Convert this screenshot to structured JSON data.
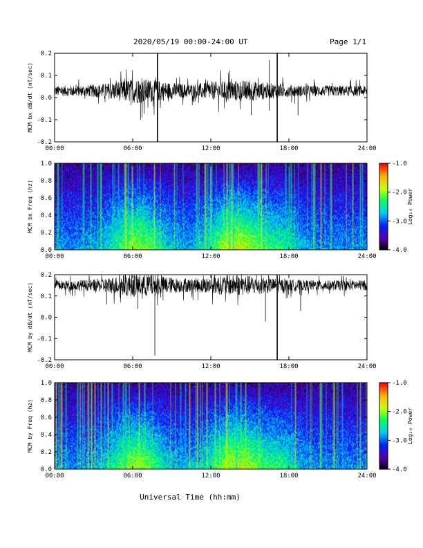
{
  "header": {
    "title": "2020/05/19  00:00-24:00 UT",
    "page": "Page 1/1"
  },
  "x_axis": {
    "label": "Universal Time (hh:mm)",
    "range_hours": [
      0,
      24
    ],
    "tick_labels": [
      "00:00",
      "06:00",
      "12:00",
      "18:00",
      "24:00"
    ],
    "tick_hours": [
      0,
      6,
      12,
      18,
      24
    ]
  },
  "colorbar": {
    "label": "Log₁₀ Power",
    "range": [
      -4.0,
      -1.0
    ],
    "tick_labels": [
      "-1.0",
      "-2.0",
      "-3.0",
      "-4.0"
    ],
    "tick_values": [
      -1.0,
      -2.0,
      -3.0,
      -4.0
    ],
    "colormap": [
      "#000000",
      "#5a00b0",
      "#0020ff",
      "#00c8ff",
      "#00ff60",
      "#c8ff00",
      "#ffb000",
      "#ff0000"
    ]
  },
  "chart_data": [
    {
      "type": "line",
      "panel": "bx-timeseries",
      "ylabel": "MCM bx dB/dt (nT/sec)",
      "ylim": [
        -0.2,
        0.2
      ],
      "ytick_labels": [
        "0.2",
        "0.1",
        "0.0",
        "-0.1",
        "-0.2"
      ],
      "ytick_values": [
        0.2,
        0.1,
        0.0,
        -0.1,
        -0.2
      ],
      "baseline": 0.03,
      "noise_amplitude": 0.04,
      "spikes": [
        {
          "hour": 7.9,
          "value": -0.2
        },
        {
          "hour": 7.9,
          "value": 0.2
        },
        {
          "hour": 16.5,
          "value": 0.17
        },
        {
          "hour": 16.5,
          "value": -0.06
        },
        {
          "hour": 17.1,
          "value": -0.2
        },
        {
          "hour": 17.1,
          "value": 0.2
        },
        {
          "hour": 6.6,
          "value": -0.1
        },
        {
          "hour": 15.1,
          "value": -0.08
        },
        {
          "hour": 18.7,
          "value": -0.08
        }
      ]
    },
    {
      "type": "heatmap",
      "panel": "bx-spectrogram",
      "ylabel": "MCM bx Freq (hz)",
      "ylim": [
        0.0,
        1.0
      ],
      "ytick_labels": [
        "1.0",
        "0.8",
        "0.6",
        "0.4",
        "0.2",
        "0.0"
      ],
      "ytick_values": [
        1.0,
        0.8,
        0.6,
        0.4,
        0.2,
        0.0
      ],
      "zlim": [
        -4.0,
        -1.0
      ]
    },
    {
      "type": "line",
      "panel": "by-timeseries",
      "ylabel": "MCM by dB/dt (nT/sec)",
      "ylim": [
        -0.2,
        0.2
      ],
      "ytick_labels": [
        "0.2",
        "0.1",
        "0.0",
        "-0.1",
        "-0.2"
      ],
      "ytick_values": [
        0.2,
        0.1,
        0.0,
        -0.1,
        -0.2
      ],
      "baseline": 0.15,
      "noise_amplitude": 0.04,
      "spikes": [
        {
          "hour": 7.7,
          "value": -0.18
        },
        {
          "hour": 16.2,
          "value": -0.02
        },
        {
          "hour": 17.1,
          "value": -0.2
        },
        {
          "hour": 17.1,
          "value": 0.2
        },
        {
          "hour": 4.0,
          "value": 0.06
        },
        {
          "hour": 6.4,
          "value": 0.04
        },
        {
          "hour": 18.9,
          "value": 0.03
        }
      ]
    },
    {
      "type": "heatmap",
      "panel": "by-spectrogram",
      "ylabel": "MCM by Freq (hz)",
      "ylim": [
        0.0,
        1.0
      ],
      "ytick_labels": [
        "1.0",
        "0.8",
        "0.6",
        "0.4",
        "0.2",
        "0.0"
      ],
      "ytick_values": [
        1.0,
        0.8,
        0.6,
        0.4,
        0.2,
        0.0
      ],
      "zlim": [
        -4.0,
        -1.0
      ]
    }
  ]
}
